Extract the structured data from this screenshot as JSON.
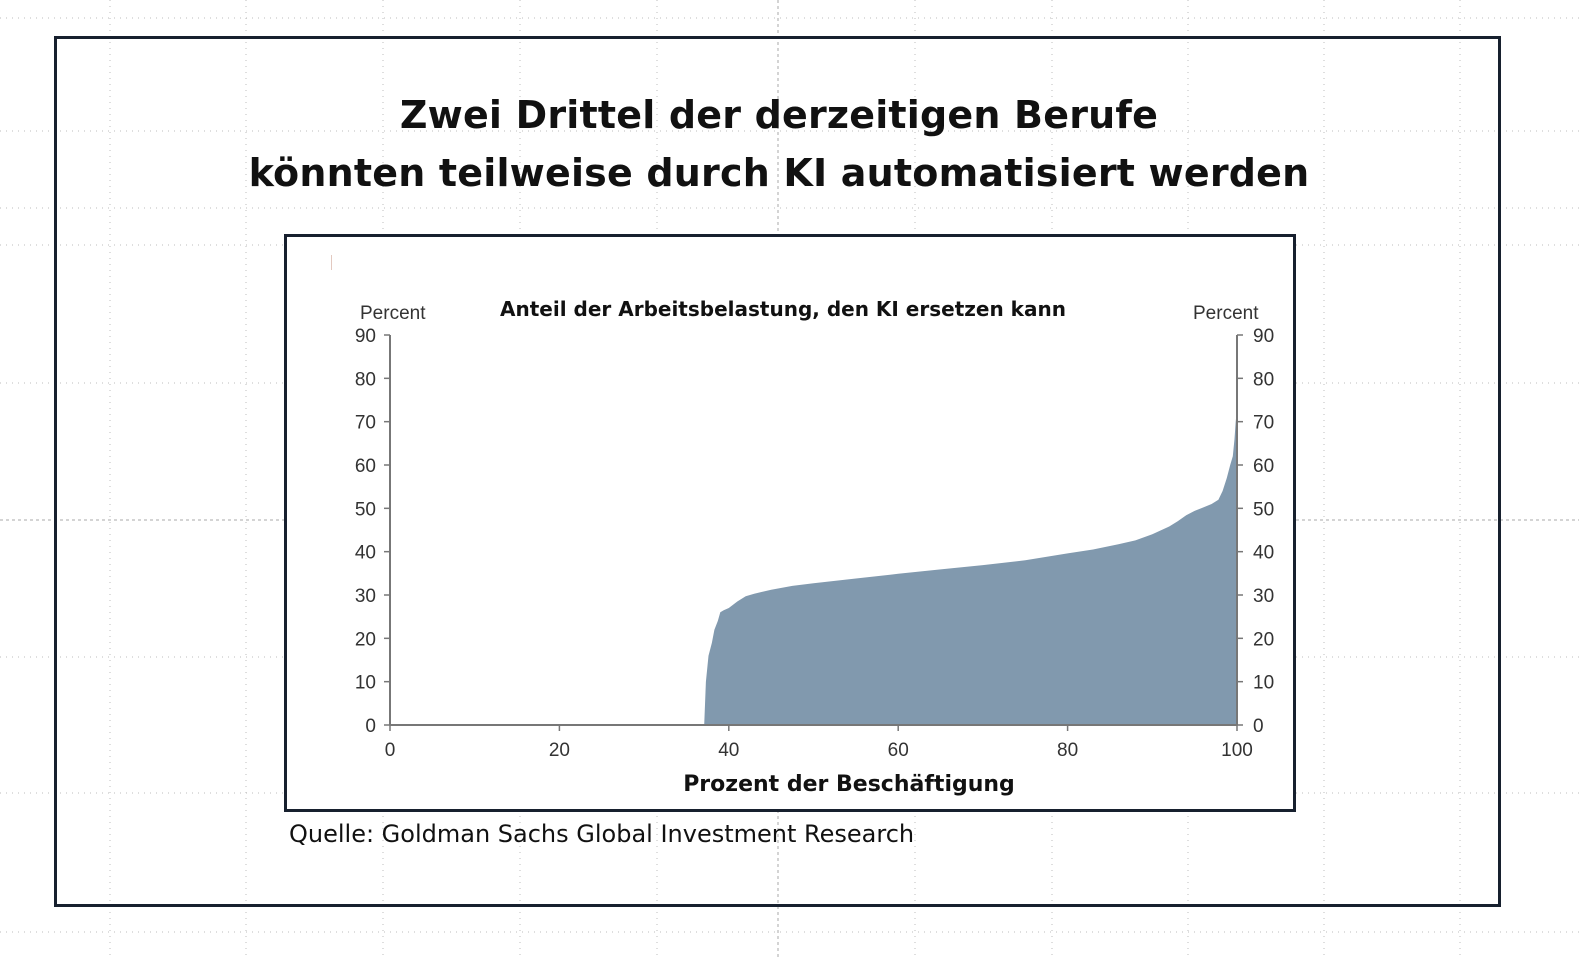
{
  "slide": {
    "title_line1": "Zwei Drittel der derzeitigen Berufe",
    "title_line2": "könnten teilweise durch KI automatisiert werden",
    "source": "Quelle: Goldman Sachs Global Investment Research"
  },
  "colors": {
    "area_fill": "#8199ae",
    "axis": "#777777",
    "frame": "#17202e"
  },
  "chart_data": {
    "type": "area",
    "title": "Anteil der Arbeitsbelastung, den KI ersetzen kann",
    "xlabel": "Prozent der Beschäftigung",
    "ylabel_left": "Percent",
    "ylabel_right": "Percent",
    "xlim": [
      0,
      100
    ],
    "ylim": [
      0,
      90
    ],
    "x_ticks": [
      0,
      20,
      40,
      60,
      80,
      100
    ],
    "x_tick_labels": [
      "0",
      "20",
      "40",
      "60",
      "80",
      "100"
    ],
    "y_ticks": [
      0,
      10,
      20,
      30,
      40,
      50,
      60,
      70,
      80,
      90
    ],
    "y_tick_labels": [
      "0",
      "10",
      "20",
      "30",
      "40",
      "50",
      "60",
      "70",
      "80",
      "90"
    ],
    "grid": false,
    "legend": "none",
    "series": [
      {
        "x": [
          37.1,
          37.3,
          37.6,
          38.0,
          38.3,
          38.7,
          39.0,
          39.4,
          40.0,
          41.0,
          42.0,
          43.0,
          45.0,
          47.5,
          50.0,
          55.0,
          60.0,
          65.0,
          70.0,
          75.0,
          80.0,
          83.0,
          86.0,
          88.0,
          90.0,
          92.0,
          93.0,
          94.0,
          95.0,
          96.0,
          97.0,
          97.8,
          98.3,
          98.8,
          99.2,
          99.5,
          99.7,
          99.85,
          100.0
        ],
        "y": [
          0,
          10,
          16,
          19,
          22,
          24,
          26,
          26.5,
          27,
          28.5,
          29.7,
          30.3,
          31.2,
          32.1,
          32.7,
          33.8,
          34.9,
          35.9,
          36.9,
          38.0,
          39.6,
          40.5,
          41.7,
          42.6,
          44.0,
          45.8,
          47.0,
          48.4,
          49.4,
          50.2,
          51.0,
          52.0,
          54.0,
          57.0,
          60.0,
          62.0,
          66.0,
          70.0,
          73.0
        ]
      }
    ]
  }
}
